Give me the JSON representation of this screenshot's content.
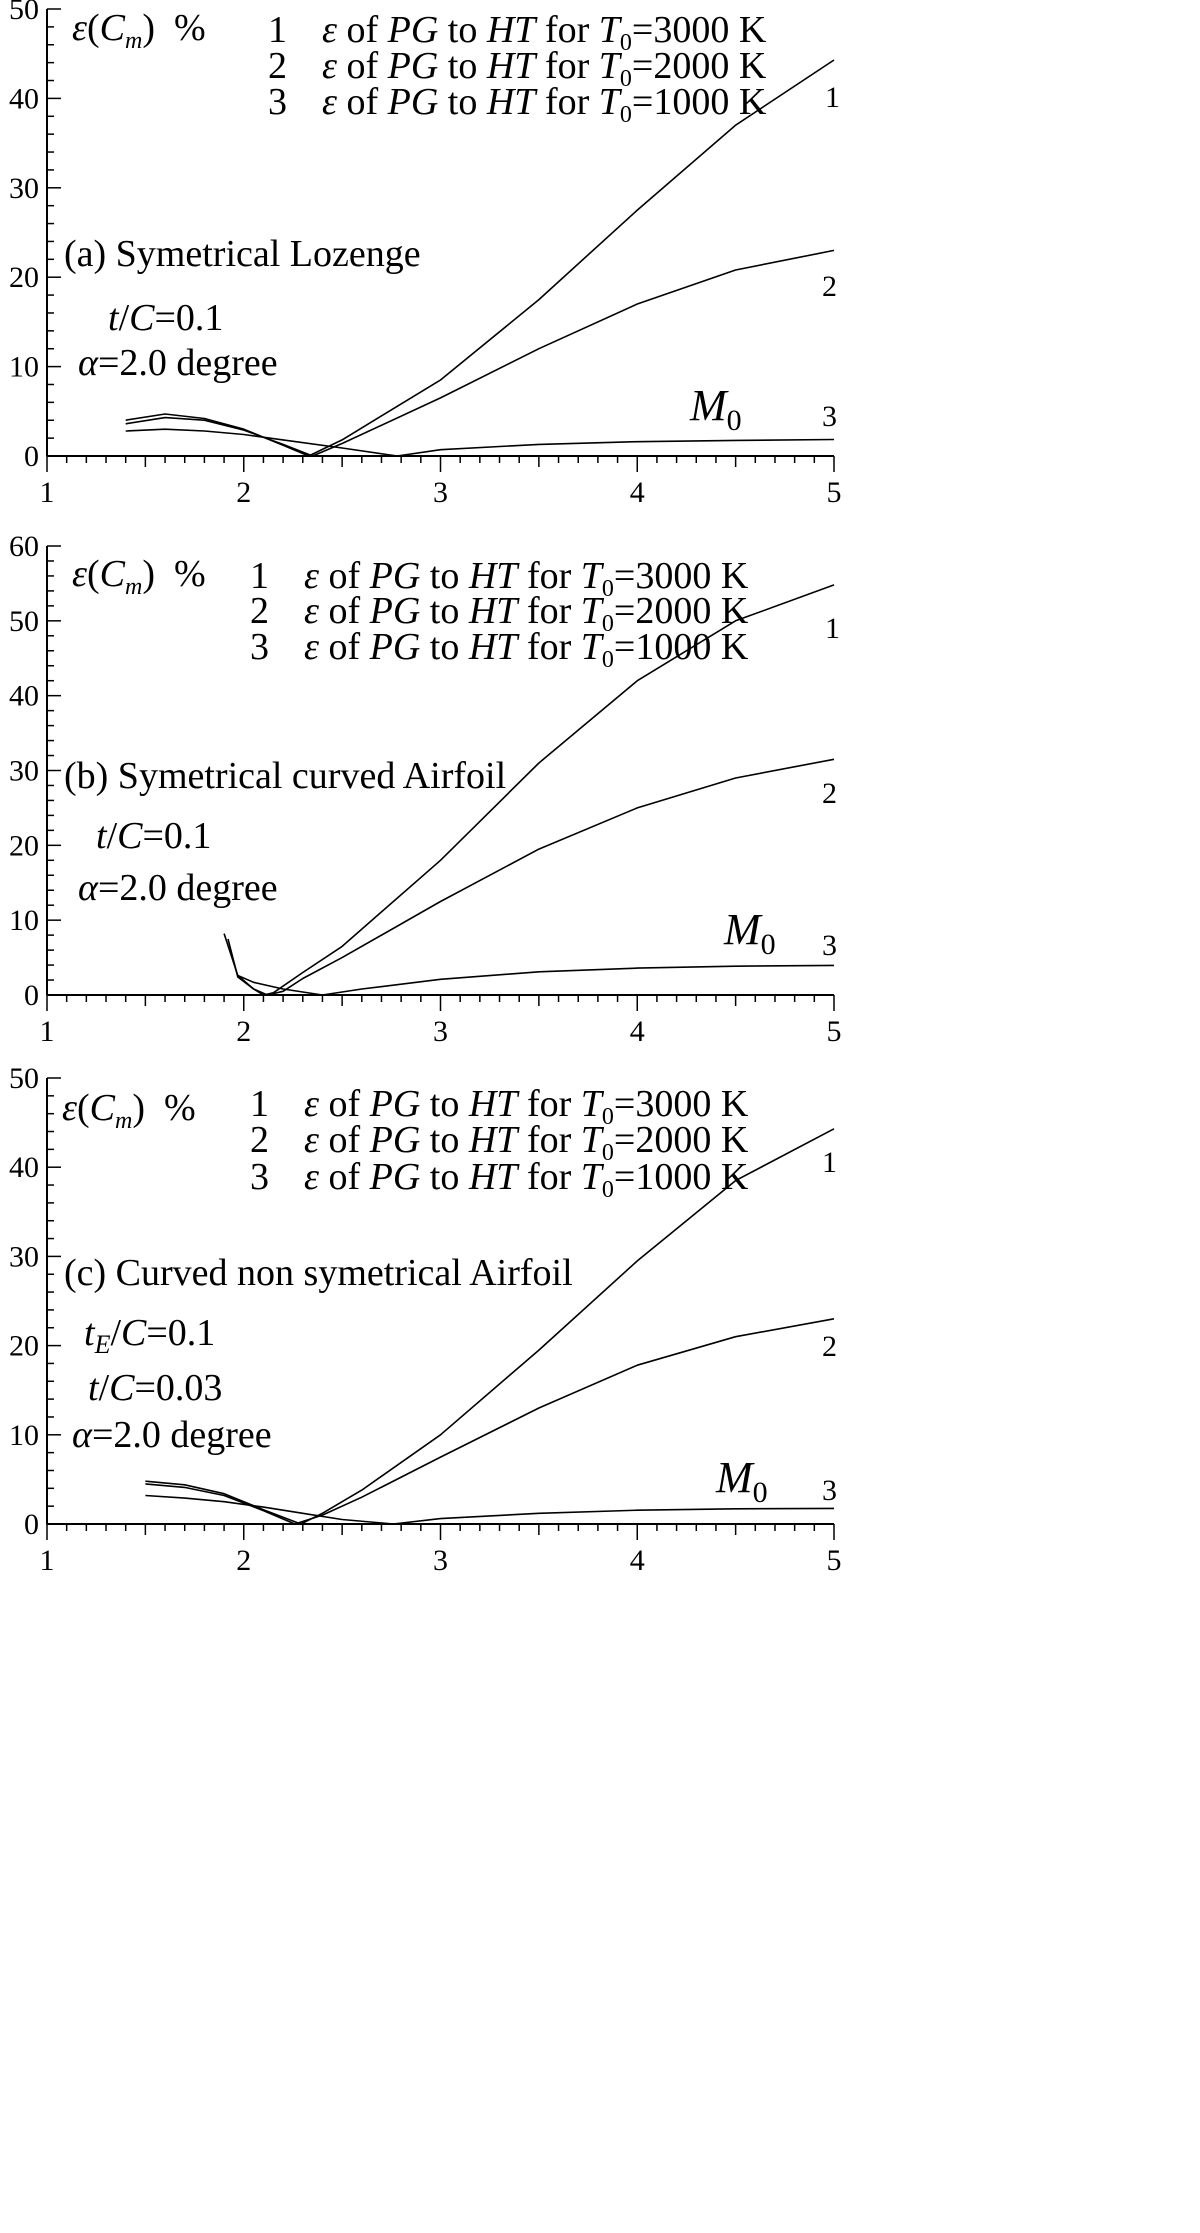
{
  "figure": {
    "panels": [
      {
        "ylabel_html": "ε(<tspan font-style='italic'>C</tspan><tspan font-style='italic' font-size='24' dy='8'>m</tspan><tspan dy='-8'>)&#160;&#160;%</tspan>",
        "title": "(a)  Symetrical Lozenge",
        "params": [
          "<tspan font-style='italic'>t</tspan>/<tspan font-style='italic'>C</tspan>=0.1",
          "<tspan font-style='italic'>α</tspan>=2.0 degree"
        ],
        "xlabel": "M",
        "xlabel_sub": "0",
        "curve_labels": [
          "1",
          "2",
          "3"
        ]
      },
      {
        "title": "(b) Symetrical curved Airfoil",
        "params": [
          "<tspan font-style='italic'>t</tspan>/<tspan font-style='italic'>C</tspan>=0.1",
          "<tspan font-style='italic'>α</tspan>=2.0 degree"
        ],
        "xlabel": "M",
        "xlabel_sub": "0",
        "curve_labels": [
          "1",
          "2",
          "3"
        ]
      },
      {
        "title": "(c)  Curved non symetrical Airfoil",
        "params": [
          "<tspan font-style='italic'>t</tspan><tspan font-style='italic' font-size='26' dy='8'>E</tspan><tspan dy='-8'>/</tspan><tspan font-style='italic'>C</tspan>=0.1",
          "<tspan font-style='italic'>t</tspan>/<tspan font-style='italic'>C</tspan>=0.03",
          "<tspan font-style='italic'>α</tspan>=2.0 degree"
        ],
        "xlabel": "M",
        "xlabel_sub": "0",
        "curve_labels": [
          "1",
          "2",
          "3"
        ]
      }
    ]
  },
  "chart_data": [
    {
      "type": "line",
      "title": "(a)  Symetrical Lozenge",
      "ylabel": "ε(Cm)  %",
      "xlabel": "M0",
      "xlim": [
        1,
        5
      ],
      "ylim": [
        0,
        50
      ],
      "x_ticks": [
        1,
        2,
        3,
        4,
        5
      ],
      "y_ticks": [
        0,
        10,
        20,
        30,
        40,
        50
      ],
      "series": [
        {
          "name": "ε of PG to HT for T0=3000 K",
          "x": [
            1.4,
            1.6,
            1.8,
            2.0,
            2.2,
            2.33,
            2.5,
            3.0,
            3.5,
            4.0,
            4.5,
            5.0
          ],
          "y": [
            4.0,
            4.7,
            4.2,
            3.0,
            1.2,
            0.0,
            1.8,
            8.5,
            17.5,
            27.5,
            37.0,
            44.3
          ]
        },
        {
          "name": "ε of PG to HT for T0=2000 K",
          "x": [
            1.4,
            1.6,
            1.8,
            2.0,
            2.2,
            2.35,
            2.5,
            3.0,
            3.5,
            4.0,
            4.5,
            5.0
          ],
          "y": [
            3.6,
            4.3,
            4.0,
            2.9,
            1.3,
            0.0,
            1.4,
            6.5,
            12.0,
            17.0,
            20.8,
            23.0
          ]
        },
        {
          "name": "ε of PG to HT for T0=1000 K",
          "x": [
            1.4,
            1.6,
            1.8,
            2.0,
            2.2,
            2.5,
            2.78,
            3.0,
            3.5,
            4.0,
            4.5,
            5.0
          ],
          "y": [
            2.8,
            3.0,
            2.8,
            2.4,
            1.8,
            0.9,
            0.0,
            0.7,
            1.3,
            1.6,
            1.75,
            1.85
          ]
        }
      ],
      "legend": [
        {
          "num": "1",
          "name": "ε of PG to HT for T0=3000 K"
        },
        {
          "num": "2",
          "name": "ε of PG to HT for T0=2000 K"
        },
        {
          "num": "3",
          "name": "ε of PG to HT for T0=1000 K"
        }
      ]
    },
    {
      "type": "line",
      "title": "(b) Symetrical curved Airfoil",
      "ylabel": "ε(Cm)  %",
      "xlabel": "M0",
      "xlim": [
        1,
        5
      ],
      "ylim": [
        0,
        60
      ],
      "x_ticks": [
        1,
        2,
        3,
        4,
        5
      ],
      "y_ticks": [
        0,
        10,
        20,
        30,
        40,
        50,
        60
      ],
      "series": [
        {
          "name": "ε of PG to HT for T0=3000 K",
          "x": [
            1.9,
            1.97,
            2.05,
            2.1,
            2.15,
            2.3,
            2.5,
            3.0,
            3.5,
            4.0,
            4.5,
            5.0
          ],
          "y": [
            8.2,
            2.6,
            0.8,
            0.0,
            0.3,
            3.0,
            6.5,
            18.0,
            31.0,
            42.0,
            50.0,
            54.8
          ]
        },
        {
          "name": "ε of PG to HT for T0=2000 K",
          "x": [
            1.92,
            1.97,
            2.05,
            2.12,
            2.2,
            2.3,
            2.5,
            3.0,
            3.5,
            4.0,
            4.5,
            5.0
          ],
          "y": [
            7.5,
            2.4,
            0.8,
            0.0,
            0.5,
            2.2,
            5.0,
            12.5,
            19.5,
            25.0,
            29.0,
            31.5
          ]
        },
        {
          "name": "ε of PG to HT for T0=1000 K",
          "x": [
            1.97,
            2.05,
            2.2,
            2.4,
            2.6,
            3.0,
            3.5,
            4.0,
            4.5,
            5.0
          ],
          "y": [
            2.6,
            1.7,
            0.8,
            0.0,
            0.8,
            2.1,
            3.1,
            3.6,
            3.85,
            3.95
          ]
        }
      ],
      "legend": [
        {
          "num": "1",
          "name": "ε of PG to HT for T0=3000 K"
        },
        {
          "num": "2",
          "name": "ε of PG to HT for T0=2000 K"
        },
        {
          "num": "3",
          "name": "ε of PG to HT for T0=1000 K"
        }
      ]
    },
    {
      "type": "line",
      "title": "(c)  Curved non symetrical Airfoil",
      "ylabel": "ε(Cm)  %",
      "xlabel": "M0",
      "xlim": [
        1,
        5
      ],
      "ylim": [
        0,
        50
      ],
      "x_ticks": [
        1,
        2,
        3,
        4,
        5
      ],
      "y_ticks": [
        0,
        10,
        20,
        30,
        40,
        50
      ],
      "series": [
        {
          "name": "ε of PG to HT for T0=3000 K",
          "x": [
            1.5,
            1.7,
            1.9,
            2.1,
            2.29,
            2.4,
            2.6,
            3.0,
            3.5,
            4.0,
            4.5,
            5.0
          ],
          "y": [
            4.8,
            4.4,
            3.4,
            1.6,
            0.0,
            1.2,
            3.8,
            10.0,
            19.5,
            29.5,
            38.5,
            44.3
          ]
        },
        {
          "name": "ε of PG to HT for T0=2000 K",
          "x": [
            1.5,
            1.7,
            1.9,
            2.1,
            2.26,
            2.4,
            2.6,
            3.0,
            3.5,
            4.0,
            4.5,
            5.0
          ],
          "y": [
            4.5,
            4.1,
            3.2,
            1.5,
            0.0,
            1.0,
            3.0,
            7.5,
            13.0,
            17.8,
            21.0,
            23.0
          ]
        },
        {
          "name": "ε of PG to HT for T0=1000 K",
          "x": [
            1.5,
            1.7,
            1.9,
            2.1,
            2.3,
            2.5,
            2.76,
            3.0,
            3.5,
            4.0,
            4.5,
            5.0
          ],
          "y": [
            3.2,
            2.9,
            2.5,
            1.9,
            1.2,
            0.5,
            0.0,
            0.6,
            1.2,
            1.55,
            1.7,
            1.75
          ]
        }
      ],
      "legend": [
        {
          "num": "1",
          "name": "ε of PG to HT for T0=3000 K"
        },
        {
          "num": "2",
          "name": "ε of PG to HT for T0=2000 K"
        },
        {
          "num": "3",
          "name": "ε of PG to HT for T0=1000 K"
        }
      ]
    }
  ]
}
